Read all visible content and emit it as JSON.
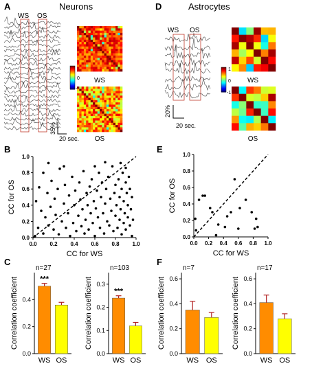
{
  "panels": {
    "A": {
      "letter": "A",
      "title": "Neurons"
    },
    "D": {
      "letter": "D",
      "title": "Astrocytes"
    },
    "B": {
      "letter": "B"
    },
    "E": {
      "letter": "E"
    },
    "C": {
      "letter": "C"
    },
    "F": {
      "letter": "F"
    }
  },
  "traces": {
    "neurons": {
      "window_labels": [
        "WS",
        "OS"
      ],
      "n_traces": 24,
      "scale_y": "35%",
      "scale_x": "20 sec."
    },
    "astrocytes": {
      "window_labels": [
        "WS",
        "OS"
      ],
      "n_traces": 8,
      "scale_y": "20%",
      "scale_x": "20 sec."
    }
  },
  "colorbar": {
    "ticks": [
      "1",
      "0",
      "-1"
    ]
  },
  "matrices": {
    "neurons": [
      {
        "label": "WS",
        "size": 20
      },
      {
        "label": "OS",
        "size": 20
      }
    ],
    "astrocytes": [
      {
        "label": "WS",
        "size": 6
      },
      {
        "label": "OS",
        "size": 6
      }
    ]
  },
  "chart_data": [
    {
      "id": "B",
      "type": "scatter",
      "xlabel": "CC for WS",
      "ylabel": "CC for OS",
      "xlim": [
        0,
        1.0
      ],
      "ylim": [
        0,
        1.0
      ],
      "xticks": [
        "0.0",
        "0.2",
        "0.4",
        "0.6",
        "0.8",
        "1.0"
      ],
      "yticks": [
        "0.0",
        "0.2",
        "0.4",
        "0.6",
        "0.8",
        "1.0"
      ],
      "points": [
        [
          0.02,
          0.02
        ],
        [
          0.03,
          0.45
        ],
        [
          0.05,
          0.12
        ],
        [
          0.06,
          0.62
        ],
        [
          0.08,
          0.33
        ],
        [
          0.1,
          0.8
        ],
        [
          0.1,
          0.05
        ],
        [
          0.12,
          0.25
        ],
        [
          0.14,
          0.55
        ],
        [
          0.15,
          0.15
        ],
        [
          0.17,
          0.38
        ],
        [
          0.18,
          0.7
        ],
        [
          0.2,
          0.1
        ],
        [
          0.21,
          0.48
        ],
        [
          0.22,
          0.28
        ],
        [
          0.24,
          0.6
        ],
        [
          0.25,
          0.04
        ],
        [
          0.26,
          0.85
        ],
        [
          0.28,
          0.2
        ],
        [
          0.3,
          0.42
        ],
        [
          0.31,
          0.65
        ],
        [
          0.32,
          0.12
        ],
        [
          0.34,
          0.3
        ],
        [
          0.35,
          0.52
        ],
        [
          0.36,
          0.02
        ],
        [
          0.38,
          0.75
        ],
        [
          0.39,
          0.18
        ],
        [
          0.4,
          0.4
        ],
        [
          0.41,
          0.58
        ],
        [
          0.42,
          0.08
        ],
        [
          0.44,
          0.27
        ],
        [
          0.45,
          0.68
        ],
        [
          0.46,
          0.47
        ],
        [
          0.47,
          0.14
        ],
        [
          0.48,
          0.35
        ],
        [
          0.49,
          0.82
        ],
        [
          0.5,
          0.05
        ],
        [
          0.51,
          0.22
        ],
        [
          0.52,
          0.55
        ],
        [
          0.53,
          0.4
        ],
        [
          0.54,
          0.1
        ],
        [
          0.55,
          0.63
        ],
        [
          0.56,
          0.3
        ],
        [
          0.57,
          0.72
        ],
        [
          0.58,
          0.18
        ],
        [
          0.59,
          0.45
        ],
        [
          0.6,
          0.02
        ],
        [
          0.61,
          0.36
        ],
        [
          0.62,
          0.58
        ],
        [
          0.63,
          0.25
        ],
        [
          0.64,
          0.8
        ],
        [
          0.65,
          0.12
        ],
        [
          0.66,
          0.5
        ],
        [
          0.67,
          0.68
        ],
        [
          0.68,
          0.3
        ],
        [
          0.69,
          0.05
        ],
        [
          0.7,
          0.42
        ],
        [
          0.71,
          0.6
        ],
        [
          0.72,
          0.2
        ],
        [
          0.73,
          0.75
        ],
        [
          0.74,
          0.15
        ],
        [
          0.75,
          0.48
        ],
        [
          0.76,
          0.33
        ],
        [
          0.77,
          0.88
        ],
        [
          0.78,
          0.08
        ],
        [
          0.79,
          0.55
        ],
        [
          0.8,
          0.27
        ],
        [
          0.8,
          0.65
        ],
        [
          0.81,
          0.4
        ],
        [
          0.82,
          0.12
        ],
        [
          0.83,
          0.72
        ],
        [
          0.84,
          0.22
        ],
        [
          0.84,
          0.5
        ],
        [
          0.85,
          0.35
        ],
        [
          0.86,
          0.6
        ],
        [
          0.86,
          0.04
        ],
        [
          0.87,
          0.8
        ],
        [
          0.88,
          0.18
        ],
        [
          0.88,
          0.45
        ],
        [
          0.89,
          0.3
        ],
        [
          0.9,
          0.68
        ],
        [
          0.9,
          0.1
        ],
        [
          0.91,
          0.55
        ],
        [
          0.92,
          0.25
        ],
        [
          0.92,
          0.4
        ],
        [
          0.93,
          0.75
        ],
        [
          0.94,
          0.15
        ],
        [
          0.94,
          0.6
        ],
        [
          0.95,
          0.35
        ],
        [
          0.96,
          0.02
        ],
        [
          0.96,
          0.5
        ],
        [
          0.97,
          0.22
        ],
        [
          0.85,
          0.92
        ],
        [
          0.9,
          0.86
        ],
        [
          0.7,
          0.93
        ],
        [
          0.6,
          0.88
        ],
        [
          0.15,
          0.92
        ],
        [
          0.3,
          0.88
        ]
      ],
      "diagonal": true
    },
    {
      "id": "E",
      "type": "scatter",
      "xlabel": "CC for WS",
      "ylabel": "CC for OS",
      "xlim": [
        0,
        1.0
      ],
      "ylim": [
        0,
        1.0
      ],
      "xticks": [
        "0.0",
        "0.2",
        "0.4",
        "0.6",
        "0.8",
        "1.0"
      ],
      "yticks": [
        "0.0",
        "0.2",
        "0.4",
        "0.6",
        "0.8",
        "1.0"
      ],
      "points": [
        [
          0.02,
          0.22
        ],
        [
          0.03,
          0.08
        ],
        [
          0.07,
          0.45
        ],
        [
          0.12,
          0.5
        ],
        [
          0.15,
          0.5
        ],
        [
          0.22,
          0.35
        ],
        [
          0.25,
          0.3
        ],
        [
          0.3,
          0.02
        ],
        [
          0.33,
          0.15
        ],
        [
          0.42,
          0.12
        ],
        [
          0.45,
          0.25
        ],
        [
          0.5,
          0.3
        ],
        [
          0.55,
          0.7
        ],
        [
          0.6,
          0.1
        ],
        [
          0.62,
          0.35
        ],
        [
          0.7,
          0.45
        ],
        [
          0.78,
          0.3
        ],
        [
          0.82,
          0.1
        ],
        [
          0.84,
          0.22
        ],
        [
          0.86,
          0.12
        ]
      ],
      "diagonal": true
    },
    {
      "id": "C1",
      "type": "bar",
      "n_label": "n=27",
      "ylabel": "Correlation coefficient",
      "categories": [
        "WS",
        "OS"
      ],
      "values": [
        0.5,
        0.36
      ],
      "errors": [
        0.02,
        0.02
      ],
      "ylim": [
        0,
        0.6
      ],
      "yticks": [
        "0.0",
        "0.2",
        "0.4"
      ],
      "significance": "***",
      "colors": [
        "#ff8c00",
        "#ffff00"
      ]
    },
    {
      "id": "C2",
      "type": "bar",
      "n_label": "n=103",
      "ylabel": "Correlation coefficient",
      "categories": [
        "WS",
        "OS"
      ],
      "values": [
        0.24,
        0.12
      ],
      "errors": [
        0.01,
        0.015
      ],
      "ylim": [
        0,
        0.35
      ],
      "yticks": [
        "0.0",
        "0.1",
        "0.2",
        "0.3"
      ],
      "significance": "***",
      "colors": [
        "#ff8c00",
        "#ffff00"
      ]
    },
    {
      "id": "F1",
      "type": "bar",
      "n_label": "n=7",
      "ylabel": "Correlation coefficient",
      "categories": [
        "WS",
        "OS"
      ],
      "values": [
        0.35,
        0.29
      ],
      "errors": [
        0.07,
        0.04
      ],
      "ylim": [
        0,
        0.65
      ],
      "yticks": [
        "0.0",
        "0.2",
        "0.4",
        "0.6"
      ],
      "significance": "",
      "colors": [
        "#ff8c00",
        "#ffff00"
      ]
    },
    {
      "id": "F2",
      "type": "bar",
      "n_label": "n=17",
      "ylabel": "Correlation coefficient",
      "categories": [
        "WS",
        "OS"
      ],
      "values": [
        0.41,
        0.28
      ],
      "errors": [
        0.06,
        0.04
      ],
      "ylim": [
        0,
        0.65
      ],
      "yticks": [
        "0.0",
        "0.2",
        "0.4",
        "0.6"
      ],
      "significance": "",
      "colors": [
        "#ff8c00",
        "#ffff00"
      ]
    }
  ]
}
